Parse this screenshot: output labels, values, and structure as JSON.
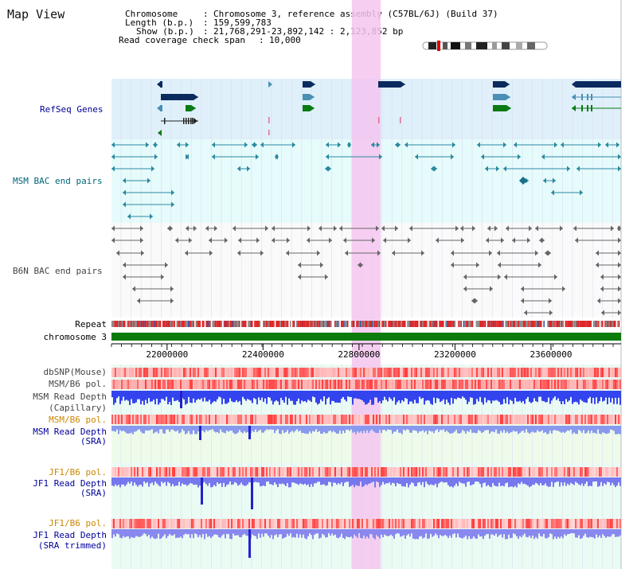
{
  "title": "Map View",
  "header": {
    "chromosome_key": "Chromosome",
    "chromosome_value": "Chromosome 3, reference assembly (C57BL/6J) (Build 37)",
    "length_key": "Length (b.p.)",
    "length_value": "159,599,783",
    "show_key": "Show (b.p.)",
    "show_value": "21,768,291-23,892,142 : 2,123,852 bp",
    "coverage_key": "Read coverage check span",
    "coverage_value": "10,000"
  },
  "tracks": {
    "refseq": "RefSeq Genes",
    "msm_bac": "MSM BAC end pairs",
    "b6n_bac": "B6N BAC end pairs",
    "repeat": "Repeat",
    "chromosome": "chromosome 3",
    "dbsnp": "dbSNP(Mouse)",
    "msm_b6_pol": "MSM/B6 pol.",
    "msm_depth_cap_1": "MSM Read Depth",
    "msm_depth_cap_2": "(Capillary)",
    "msm_b6_pol_2": "MSM/B6 pol.",
    "msm_depth_sra_1": "MSM Read Depth",
    "msm_depth_sra_2": "(SRA)",
    "jf1_b6_pol": "JF1/B6 pol.",
    "jf1_depth_sra_1": "JF1 Read Depth",
    "jf1_depth_sra_2": "(SRA)",
    "jf1_b6_pol_2": "JF1/B6 pol.",
    "jf1_depth_trim_1": "JF1 Read Depth",
    "jf1_depth_trim_2": "(SRA trimmed)"
  },
  "axis": {
    "ticks": [
      "22000000",
      "22400000",
      "22800000",
      "23200000",
      "23600000"
    ],
    "tick_values": [
      22000000,
      22400000,
      22800000,
      23200000,
      23600000
    ],
    "view_start": 21768291,
    "view_end": 23892142,
    "highlight_start": 22770000,
    "highlight_end": 22890000
  },
  "colors": {
    "refseq_bg": "#dff0fa",
    "msm_bg": "#e6fbfb",
    "b6n_bg": "#fafafa",
    "highlight": "#f4c6f0",
    "gene_dark": "#0b2a5e",
    "gene_mid": "#4a90b4",
    "gene_green": "#0a7a12",
    "msm_teal": "#2a8aa0",
    "b6n_gray": "#666666",
    "chrom_green": "#0b7c0b",
    "label_blue": "#000099",
    "label_teal": "#006677",
    "label_orange": "#cc8800",
    "label_gray": "#444444"
  }
}
